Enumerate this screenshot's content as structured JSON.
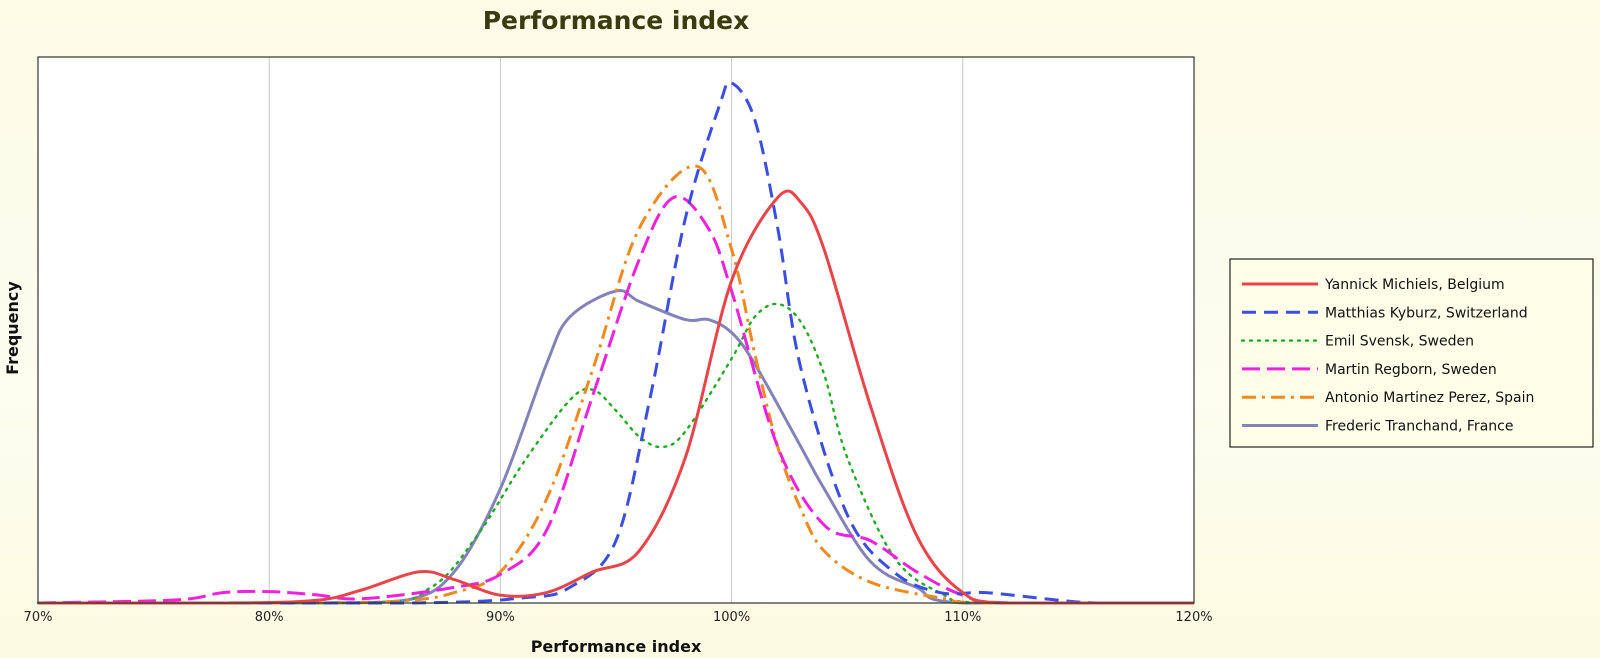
{
  "chart_data": {
    "type": "line",
    "title": "Performance index",
    "xlabel": "Performance index",
    "ylabel": "Frequency",
    "xlim": [
      70,
      120
    ],
    "ylim": [
      0,
      1.05
    ],
    "x_ticks": [
      "70%",
      "80%",
      "90%",
      "100%",
      "110%",
      "120%"
    ],
    "x_tick_values": [
      70,
      80,
      90,
      100,
      110,
      120
    ],
    "grid": "vertical",
    "legend_position": "right",
    "series": [
      {
        "name": "Yannick Michiels, Belgium",
        "color": "#e8454a",
        "dash": "solid",
        "points": [
          [
            70,
            0
          ],
          [
            78,
            0
          ],
          [
            82,
            0.005
          ],
          [
            84,
            0.025
          ],
          [
            86.5,
            0.06
          ],
          [
            88,
            0.045
          ],
          [
            90,
            0.015
          ],
          [
            92,
            0.02
          ],
          [
            94,
            0.06
          ],
          [
            96,
            0.1
          ],
          [
            98,
            0.28
          ],
          [
            100,
            0.62
          ],
          [
            102,
            0.78
          ],
          [
            103,
            0.77
          ],
          [
            104,
            0.68
          ],
          [
            106,
            0.38
          ],
          [
            108,
            0.13
          ],
          [
            110,
            0.02
          ],
          [
            112,
            0
          ],
          [
            120,
            0
          ]
        ]
      },
      {
        "name": "Matthias Kyburz, Switzerland",
        "color": "#3a4fe0",
        "dash": "long-dash",
        "points": [
          [
            70,
            0
          ],
          [
            86,
            0
          ],
          [
            91,
            0.01
          ],
          [
            93,
            0.03
          ],
          [
            95,
            0.12
          ],
          [
            96.5,
            0.4
          ],
          [
            98,
            0.74
          ],
          [
            99.5,
            0.96
          ],
          [
            100,
            1.0
          ],
          [
            101,
            0.93
          ],
          [
            102,
            0.72
          ],
          [
            103,
            0.45
          ],
          [
            105,
            0.17
          ],
          [
            107,
            0.06
          ],
          [
            109,
            0.02
          ],
          [
            111,
            0.02
          ],
          [
            114,
            0.006
          ],
          [
            116,
            0
          ],
          [
            120,
            0
          ]
        ]
      },
      {
        "name": "Emil Svensk, Sweden",
        "color": "#22aa22",
        "dash": "dotted",
        "points": [
          [
            70,
            0
          ],
          [
            84,
            0
          ],
          [
            87,
            0.03
          ],
          [
            89,
            0.13
          ],
          [
            91,
            0.27
          ],
          [
            93,
            0.39
          ],
          [
            94,
            0.41
          ],
          [
            95,
            0.37
          ],
          [
            96,
            0.32
          ],
          [
            97,
            0.3
          ],
          [
            98,
            0.33
          ],
          [
            100,
            0.47
          ],
          [
            101,
            0.55
          ],
          [
            102,
            0.575
          ],
          [
            103,
            0.54
          ],
          [
            104,
            0.44
          ],
          [
            105,
            0.28
          ],
          [
            107,
            0.09
          ],
          [
            109,
            0.02
          ],
          [
            111,
            0
          ],
          [
            120,
            0
          ]
        ]
      },
      {
        "name": "Martin Regborn, Sweden",
        "color": "#ee22dd",
        "dash": "dashed",
        "points": [
          [
            70,
            0
          ],
          [
            76,
            0.006
          ],
          [
            78,
            0.02
          ],
          [
            80,
            0.022
          ],
          [
            82,
            0.016
          ],
          [
            84,
            0.008
          ],
          [
            88,
            0.03
          ],
          [
            90,
            0.055
          ],
          [
            92,
            0.14
          ],
          [
            94,
            0.4
          ],
          [
            96,
            0.66
          ],
          [
            97.5,
            0.78
          ],
          [
            99,
            0.72
          ],
          [
            100,
            0.6
          ],
          [
            102,
            0.3
          ],
          [
            104,
            0.15
          ],
          [
            106,
            0.12
          ],
          [
            108,
            0.06
          ],
          [
            110,
            0.015
          ],
          [
            112,
            0
          ],
          [
            120,
            0
          ]
        ]
      },
      {
        "name": "Antonio Martinez Perez, Spain",
        "color": "#f08a1e",
        "dash": "dash-dot",
        "points": [
          [
            70,
            0
          ],
          [
            82,
            0
          ],
          [
            86,
            0.005
          ],
          [
            88,
            0.02
          ],
          [
            90,
            0.06
          ],
          [
            92,
            0.2
          ],
          [
            94,
            0.45
          ],
          [
            96,
            0.72
          ],
          [
            98.5,
            0.84
          ],
          [
            100,
            0.68
          ],
          [
            101,
            0.48
          ],
          [
            102,
            0.3
          ],
          [
            103,
            0.18
          ],
          [
            104,
            0.1
          ],
          [
            106,
            0.04
          ],
          [
            109,
            0.01
          ],
          [
            111,
            0
          ],
          [
            120,
            0
          ]
        ]
      },
      {
        "name": "Frederic Tranchand, France",
        "color": "#8383b9",
        "dash": "solid",
        "points": [
          [
            70,
            0
          ],
          [
            82,
            0
          ],
          [
            86,
            0.006
          ],
          [
            88,
            0.06
          ],
          [
            90,
            0.22
          ],
          [
            92,
            0.46
          ],
          [
            93,
            0.55
          ],
          [
            95,
            0.6
          ],
          [
            96,
            0.58
          ],
          [
            98,
            0.545
          ],
          [
            99,
            0.545
          ],
          [
            100,
            0.52
          ],
          [
            101,
            0.46
          ],
          [
            103,
            0.3
          ],
          [
            104,
            0.22
          ],
          [
            106,
            0.08
          ],
          [
            108,
            0.03
          ],
          [
            110,
            0
          ],
          [
            120,
            0
          ]
        ]
      }
    ]
  }
}
